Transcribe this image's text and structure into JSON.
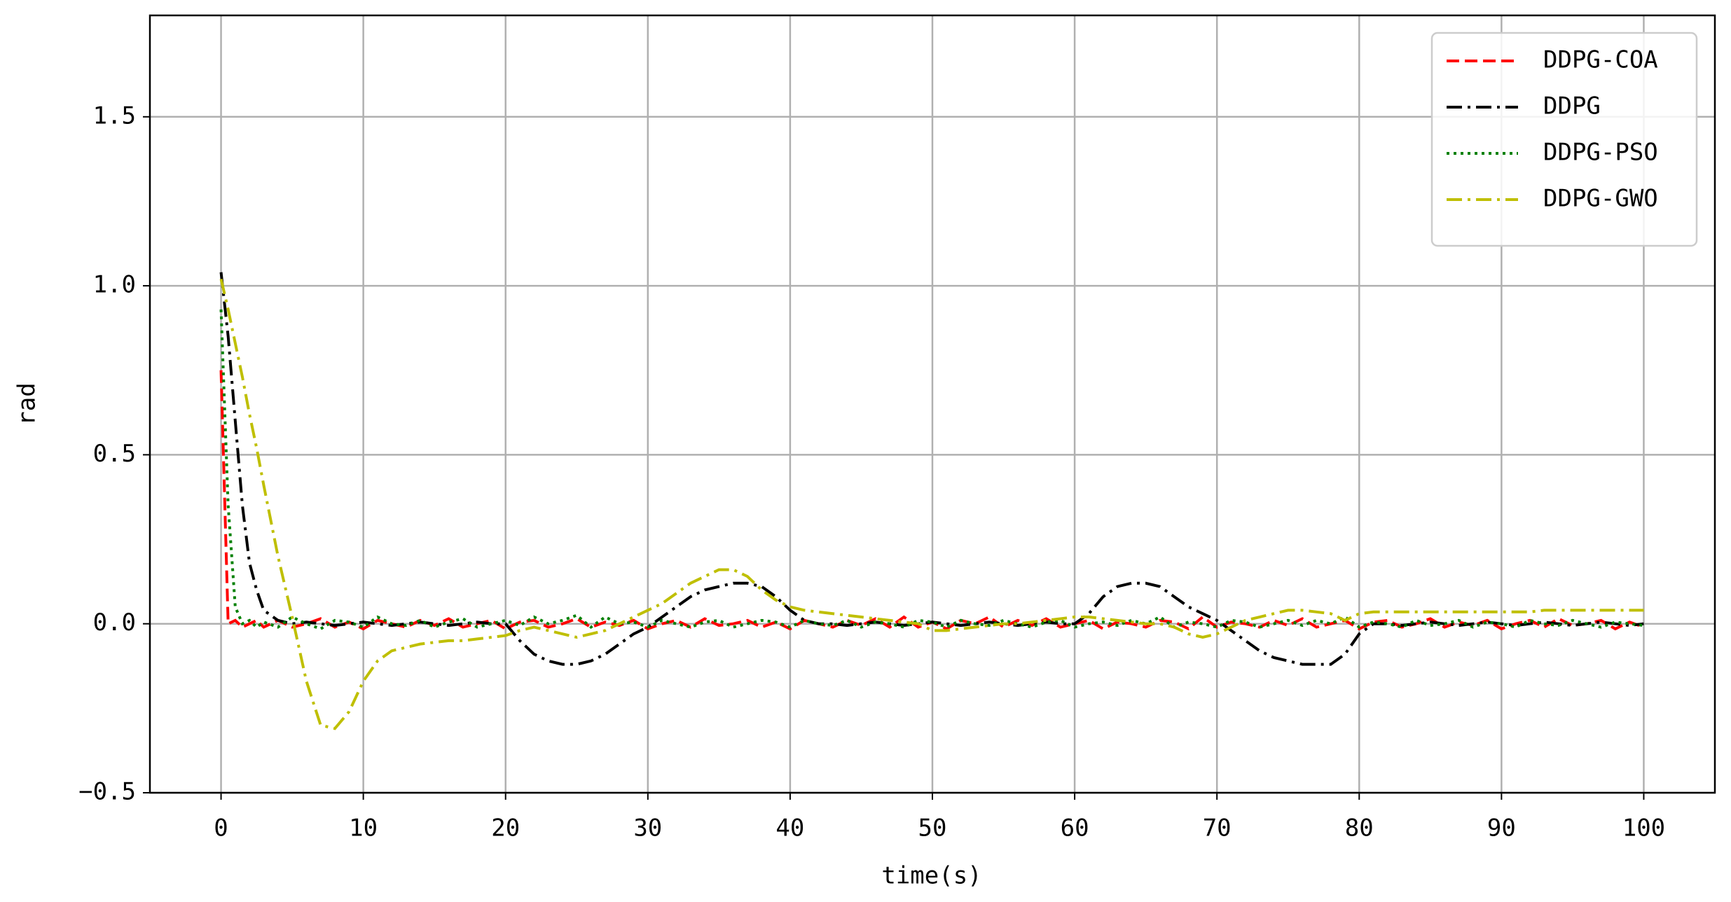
{
  "chart_data": {
    "type": "line",
    "xlabel": "time(s)",
    "ylabel": "rad",
    "xlim": [
      -5,
      105
    ],
    "ylim": [
      -0.5,
      1.8
    ],
    "xticks": [
      0,
      10,
      20,
      30,
      40,
      50,
      60,
      70,
      80,
      90,
      100
    ],
    "yticks": [
      {
        "value": -0.5,
        "label": "−0.5"
      },
      {
        "value": 0,
        "label": "0.0"
      },
      0.5,
      {
        "value": 1,
        "label": "1.0"
      },
      1.5
    ],
    "grid": true,
    "legend": "upper right",
    "x": [
      0,
      0.5,
      1,
      1.5,
      2,
      2.5,
      3,
      4,
      5,
      6,
      7,
      8,
      9,
      10,
      11,
      12,
      13,
      14,
      15,
      16,
      17,
      18,
      19,
      20,
      21,
      22,
      23,
      24,
      25,
      26,
      27,
      28,
      29,
      30,
      31,
      32,
      33,
      34,
      35,
      36,
      37,
      38,
      39,
      40,
      41,
      42,
      43,
      44,
      45,
      46,
      47,
      48,
      49,
      50,
      51,
      52,
      53,
      54,
      55,
      56,
      57,
      58,
      59,
      60,
      61,
      62,
      63,
      64,
      65,
      66,
      67,
      68,
      69,
      70,
      71,
      72,
      73,
      74,
      75,
      76,
      77,
      78,
      79,
      80,
      81,
      82,
      83,
      84,
      85,
      86,
      87,
      88,
      89,
      90,
      91,
      92,
      93,
      94,
      95,
      96,
      97,
      98,
      99,
      100
    ],
    "series": [
      {
        "name": "DDPG-COA",
        "color": "#ff0000",
        "linestyle": "dashed",
        "values": [
          0.75,
          0.0,
          0.01,
          -0.01,
          0.0,
          0.01,
          -0.01,
          0.01,
          -0.01,
          0.0,
          0.015,
          -0.01,
          0.005,
          -0.015,
          0.01,
          0.0,
          -0.01,
          0.01,
          -0.005,
          0.015,
          -0.01,
          0.0,
          0.01,
          -0.015,
          0.005,
          0.01,
          -0.01,
          0.0,
          0.015,
          -0.01,
          0.005,
          -0.005,
          0.01,
          -0.015,
          0.0,
          0.01,
          -0.01,
          0.015,
          -0.005,
          0.0,
          0.01,
          -0.01,
          0.005,
          -0.015,
          0.01,
          0.0,
          -0.01,
          0.01,
          -0.005,
          0.015,
          -0.01,
          0.02,
          -0.01,
          0.005,
          -0.015,
          0.01,
          0.0,
          0.02,
          -0.01,
          0.01,
          -0.005,
          0.015,
          -0.01,
          0.0,
          0.01,
          -0.015,
          0.005,
          0.0,
          -0.01,
          0.01,
          0.005,
          -0.015,
          0.02,
          -0.01,
          0.005,
          0.0,
          -0.01,
          0.01,
          -0.005,
          0.015,
          -0.01,
          0.0,
          0.01,
          -0.015,
          0.005,
          0.01,
          -0.01,
          0.0,
          0.015,
          -0.01,
          0.005,
          -0.005,
          0.01,
          -0.015,
          0.0,
          0.01,
          -0.01,
          0.015,
          -0.005,
          0.0,
          0.01,
          -0.015,
          0.005,
          -0.01
        ]
      },
      {
        "name": "DDPG",
        "color": "#000000",
        "linestyle": "dashdot",
        "values": [
          1.04,
          0.85,
          0.6,
          0.35,
          0.18,
          0.1,
          0.04,
          0.01,
          0.0,
          0.005,
          0.0,
          -0.005,
          0.0,
          0.005,
          0.0,
          -0.005,
          0.0,
          0.005,
          0.0,
          -0.005,
          0.0,
          0.005,
          0.0,
          0.0,
          -0.05,
          -0.09,
          -0.11,
          -0.12,
          -0.12,
          -0.11,
          -0.09,
          -0.06,
          -0.03,
          -0.01,
          0.02,
          0.05,
          0.08,
          0.1,
          0.11,
          0.12,
          0.12,
          0.11,
          0.08,
          0.04,
          0.01,
          0.0,
          0.0,
          -0.005,
          0.0,
          0.005,
          0.0,
          -0.005,
          0.0,
          0.005,
          0.0,
          -0.005,
          0.0,
          0.005,
          0.0,
          -0.005,
          0.0,
          0.005,
          0.0,
          0.0,
          0.03,
          0.08,
          0.11,
          0.12,
          0.12,
          0.11,
          0.08,
          0.05,
          0.03,
          0.01,
          -0.02,
          -0.05,
          -0.08,
          -0.1,
          -0.11,
          -0.12,
          -0.12,
          -0.12,
          -0.09,
          -0.03,
          0.0,
          0.0,
          -0.005,
          0.0,
          0.005,
          0.0,
          -0.005,
          0.0,
          0.005,
          0.0,
          -0.005,
          0.0,
          0.005,
          0.0,
          -0.005,
          0.0,
          0.005,
          0.0,
          -0.005,
          0.0
        ]
      },
      {
        "name": "DDPG-PSO",
        "color": "#008000",
        "linestyle": "dotted",
        "values": [
          0.93,
          0.35,
          0.05,
          0.0,
          0.01,
          -0.01,
          0.005,
          -0.01,
          0.02,
          0.0,
          -0.015,
          0.01,
          0.005,
          -0.01,
          0.02,
          0.0,
          -0.005,
          0.01,
          -0.01,
          0.005,
          0.015,
          -0.01,
          0.0,
          0.01,
          -0.005,
          0.02,
          0.0,
          0.01,
          0.025,
          -0.01,
          0.02,
          0.0,
          0.005,
          -0.01,
          0.01,
          0.0,
          -0.01,
          0.005,
          0.01,
          -0.01,
          0.0,
          0.01,
          0.005,
          -0.01,
          0.01,
          0.0,
          -0.005,
          0.01,
          -0.01,
          0.005,
          0.0,
          -0.01,
          0.01,
          0.005,
          -0.01,
          0.01,
          0.0,
          -0.005,
          0.01,
          0.0,
          -0.01,
          0.005,
          0.01,
          -0.01,
          0.0,
          0.005,
          -0.005,
          0.01,
          0.0,
          0.02,
          -0.01,
          0.005,
          0.0,
          -0.01,
          0.01,
          0.005,
          -0.01,
          0.0,
          0.01,
          -0.005,
          0.01,
          0.0,
          0.02,
          -0.01,
          0.005,
          0.0,
          -0.01,
          0.01,
          -0.005,
          0.0,
          0.01,
          -0.01,
          0.005,
          0.0,
          -0.01,
          0.01,
          0.0,
          -0.005,
          0.01,
          0.0,
          -0.01,
          0.005,
          0.0,
          -0.005
        ]
      },
      {
        "name": "DDPG-GWO",
        "color": "#bfbf00",
        "linestyle": "dashdot",
        "values": [
          1.02,
          0.93,
          0.83,
          0.73,
          0.62,
          0.52,
          0.41,
          0.2,
          0.02,
          -0.17,
          -0.3,
          -0.31,
          -0.26,
          -0.17,
          -0.11,
          -0.08,
          -0.07,
          -0.06,
          -0.055,
          -0.05,
          -0.05,
          -0.045,
          -0.04,
          -0.035,
          -0.02,
          -0.01,
          -0.02,
          -0.03,
          -0.04,
          -0.03,
          -0.02,
          0.0,
          0.02,
          0.04,
          0.06,
          0.09,
          0.12,
          0.14,
          0.16,
          0.16,
          0.14,
          0.1,
          0.07,
          0.05,
          0.04,
          0.035,
          0.03,
          0.025,
          0.02,
          0.015,
          0.01,
          0.005,
          0.0,
          -0.02,
          -0.02,
          -0.015,
          -0.01,
          -0.005,
          0.0,
          0.0,
          0.005,
          0.01,
          0.015,
          0.02,
          0.02,
          0.015,
          0.01,
          0.005,
          0.0,
          0.0,
          -0.01,
          -0.03,
          -0.04,
          -0.03,
          -0.01,
          0.01,
          0.02,
          0.03,
          0.04,
          0.04,
          0.035,
          0.03,
          0.01,
          0.03,
          0.035,
          0.035,
          0.035,
          0.035,
          0.035,
          0.035,
          0.035,
          0.035,
          0.035,
          0.035,
          0.035,
          0.035,
          0.04,
          0.04,
          0.04,
          0.04,
          0.04,
          0.04,
          0.04,
          0.04
        ]
      }
    ]
  }
}
